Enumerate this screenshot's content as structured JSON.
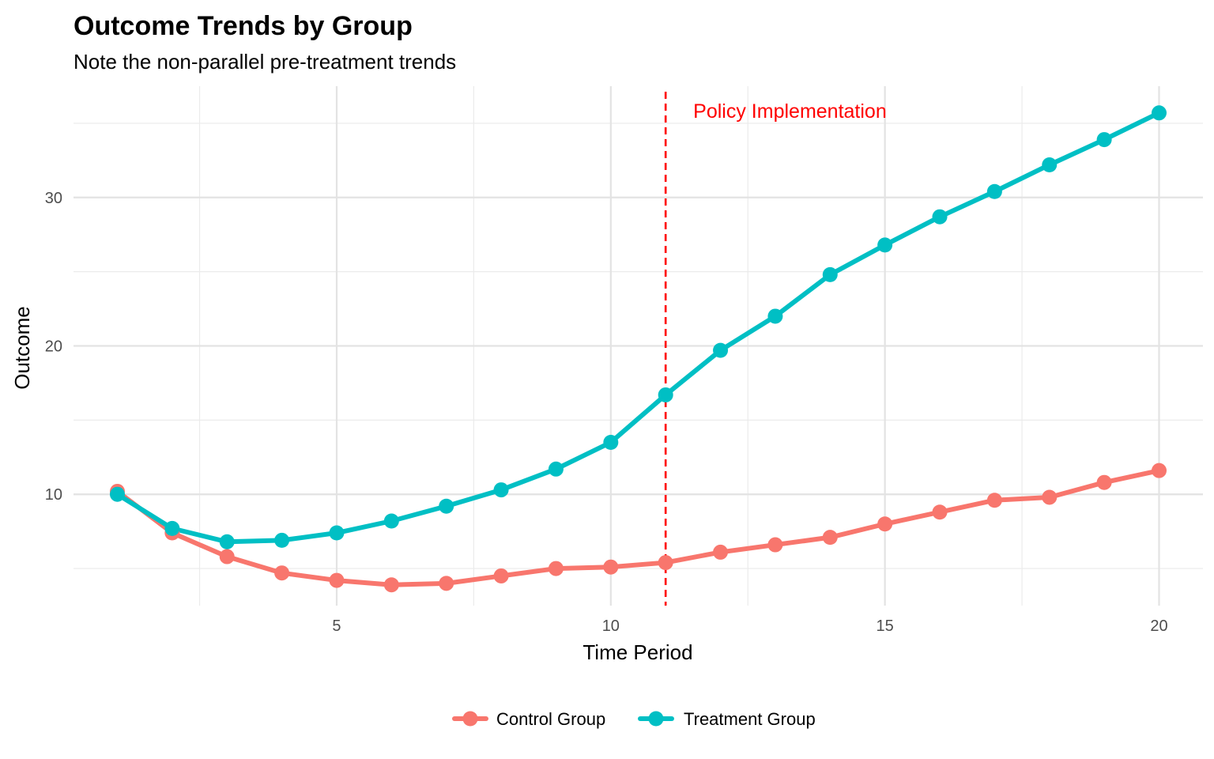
{
  "chart_data": {
    "type": "line",
    "title": "Outcome Trends by Group",
    "subtitle": "Note the non-parallel pre-treatment trends",
    "xlabel": "Time Period",
    "ylabel": "Outcome",
    "xlim": [
      0.2,
      20.8
    ],
    "ylim": [
      2.5,
      37.5
    ],
    "x_ticks": [
      5,
      10,
      15,
      20
    ],
    "x_minor_ticks": [
      2.5,
      7.5,
      12.5,
      17.5
    ],
    "y_ticks": [
      10,
      20,
      30
    ],
    "y_minor_ticks": [
      5,
      15,
      25,
      35
    ],
    "grid": true,
    "legend_position": "bottom",
    "x": [
      1,
      2,
      3,
      4,
      5,
      6,
      7,
      8,
      9,
      10,
      11,
      12,
      13,
      14,
      15,
      16,
      17,
      18,
      19,
      20
    ],
    "series": [
      {
        "name": "Control Group",
        "color": "#f8766d",
        "values": [
          10.2,
          7.4,
          5.8,
          4.7,
          4.2,
          3.9,
          4.0,
          4.5,
          5.0,
          5.1,
          5.4,
          6.1,
          6.6,
          7.1,
          8.0,
          8.8,
          9.6,
          9.8,
          10.8,
          11.6
        ]
      },
      {
        "name": "Treatment Group",
        "color": "#00bfc4",
        "values": [
          10.0,
          7.7,
          6.8,
          6.9,
          7.4,
          8.2,
          9.2,
          10.3,
          11.7,
          13.5,
          16.7,
          19.7,
          22.0,
          24.8,
          26.8,
          28.7,
          30.4,
          32.2,
          33.9,
          35.7
        ]
      }
    ],
    "annotations": [
      {
        "type": "vline",
        "x": 11,
        "color": "#ff0000",
        "style": "dashed",
        "label": "Policy Implementation"
      }
    ]
  }
}
